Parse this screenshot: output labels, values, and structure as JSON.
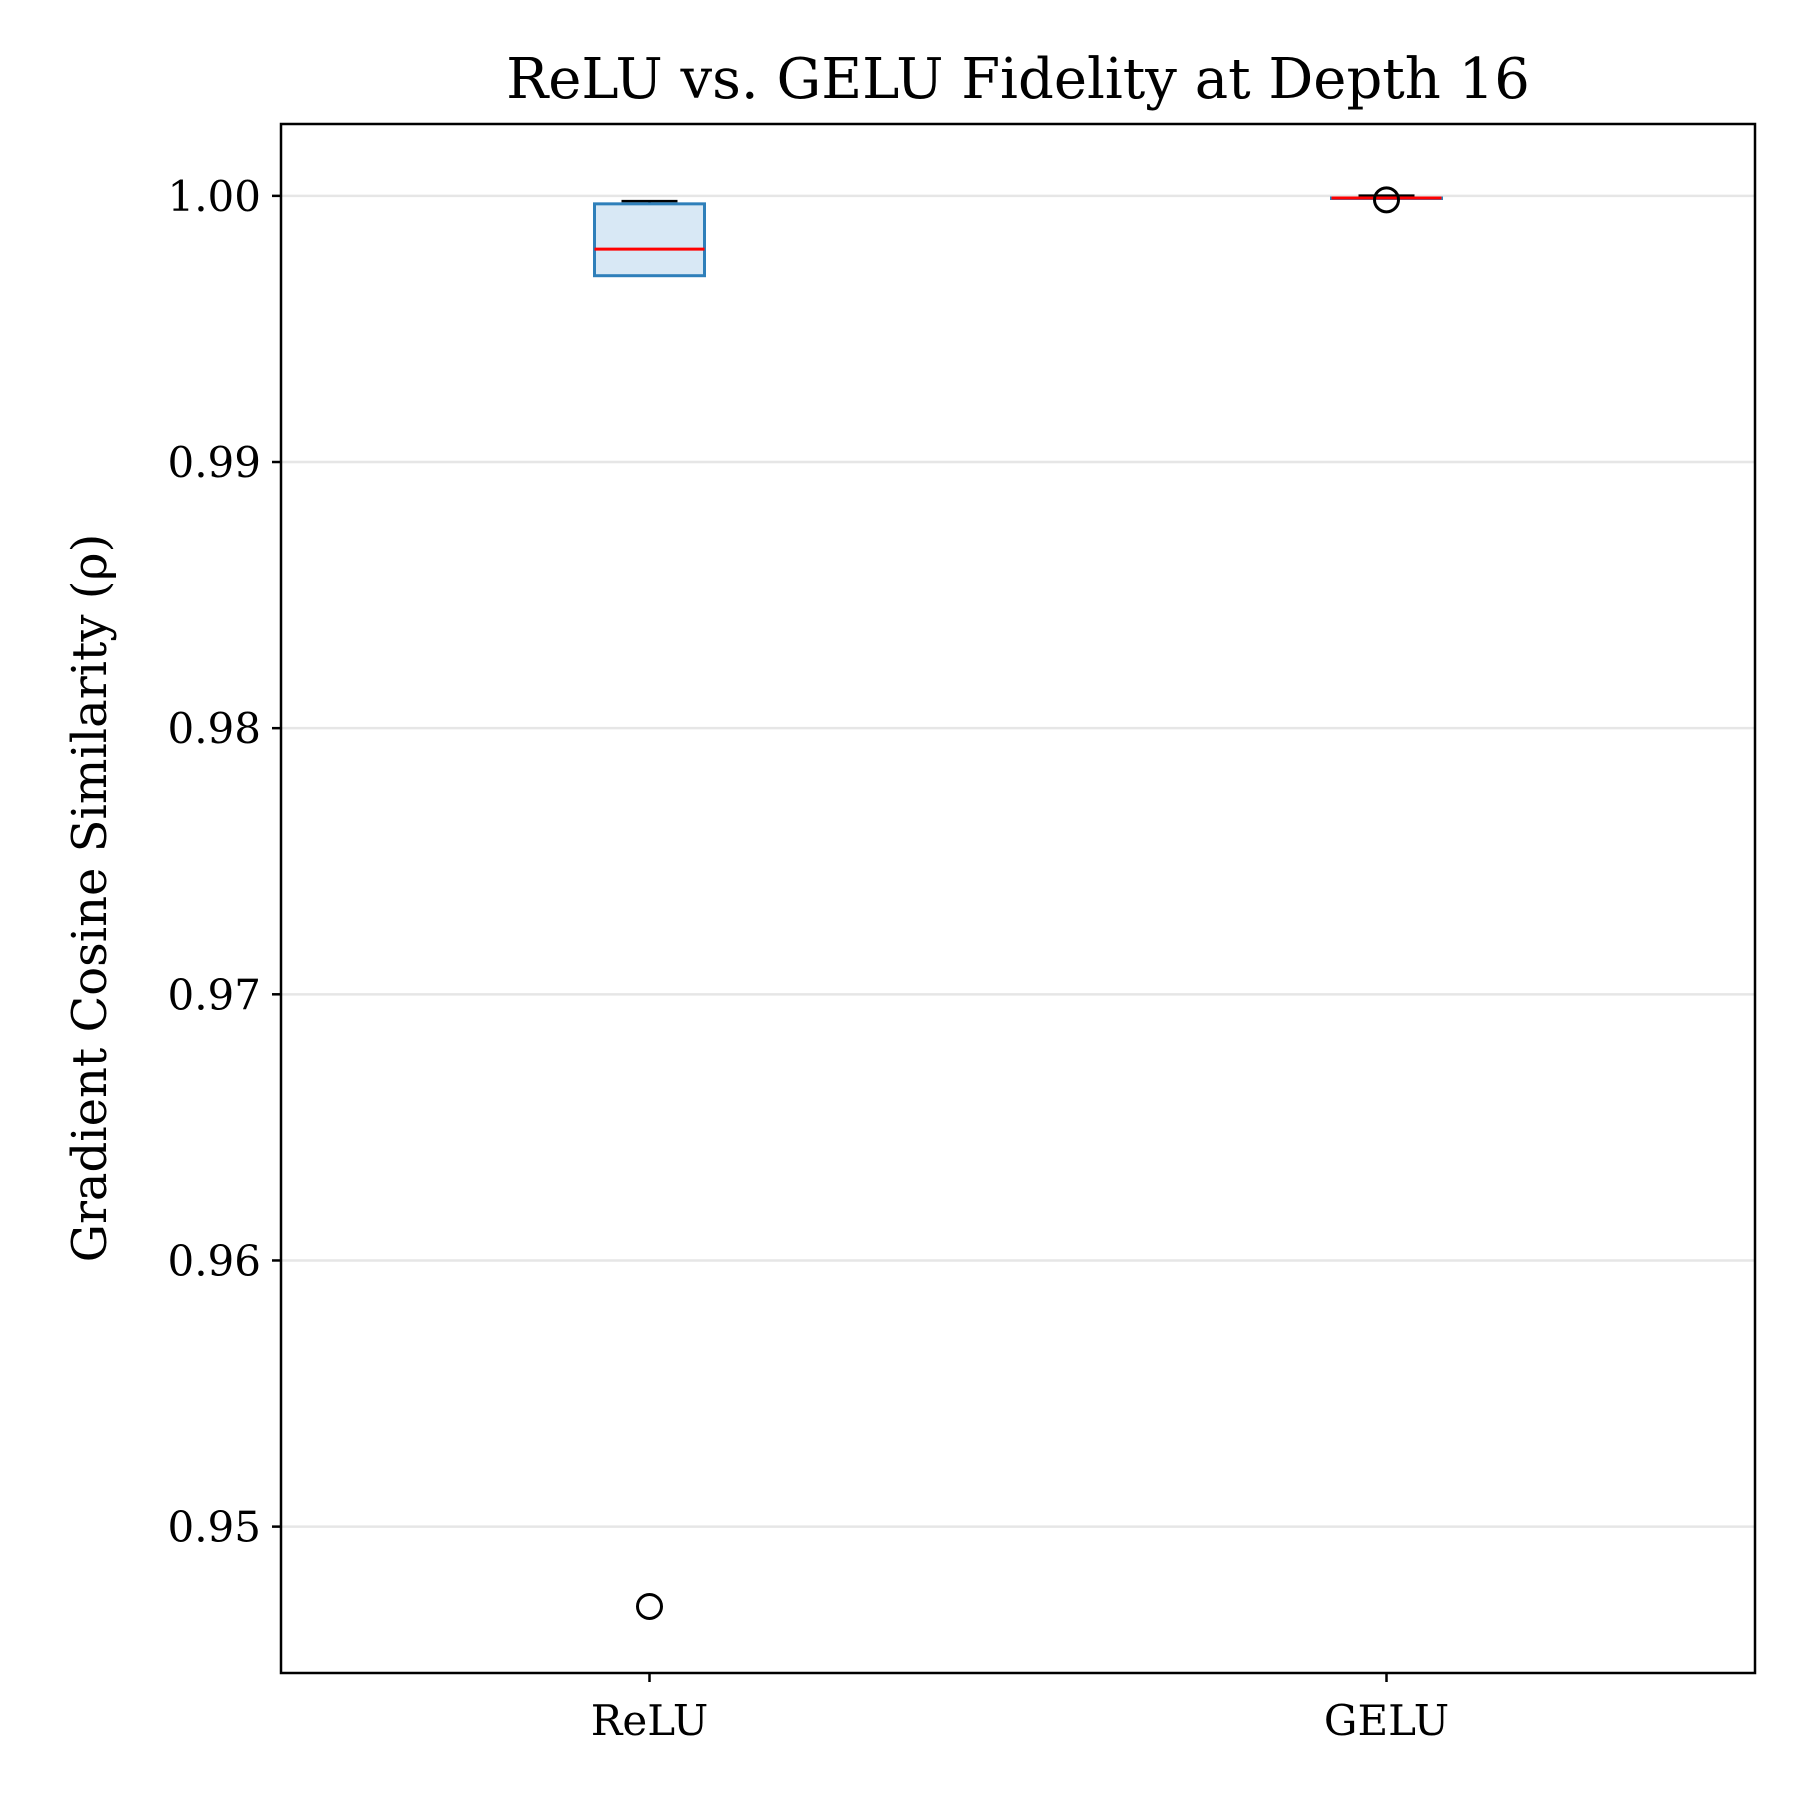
{
  "chart_data": {
    "type": "box",
    "title": "ReLU vs. GELU Fidelity at Depth 16",
    "xlabel": "",
    "ylabel": "Gradient Cosine Similarity (ρ)",
    "ylim": [
      0.9445,
      1.0027
    ],
    "yticks": [
      0.95,
      0.96,
      0.97,
      0.98,
      0.99,
      1.0
    ],
    "ytick_labels": [
      "0.95",
      "0.96",
      "0.97",
      "0.98",
      "0.99",
      "1.00"
    ],
    "grid": "horizontal",
    "categories": [
      "ReLU",
      "GELU"
    ],
    "boxes": [
      {
        "name": "ReLU",
        "whisker_low": 0.997,
        "q1": 0.997,
        "median": 0.998,
        "q3": 0.9997,
        "whisker_high": 0.9998,
        "outliers": [
          0.947
        ],
        "box_fill": "#d8e8f5",
        "box_edge": "#2e7fba",
        "median_color": "#ff0000"
      },
      {
        "name": "GELU",
        "whisker_low": 0.99992,
        "q1": 0.99992,
        "median": 0.99992,
        "q3": 0.99992,
        "whisker_high": 1.00001,
        "outliers": [
          0.99985
        ],
        "box_fill": "#d8e8f5",
        "box_edge": "#2e7fba",
        "median_color": "#ff0000"
      }
    ]
  }
}
